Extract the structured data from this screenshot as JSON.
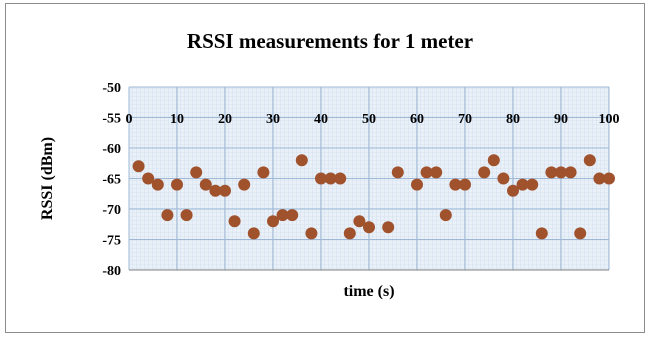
{
  "chart_data": {
    "type": "scatter",
    "title": "RSSI measurements for 1 meter",
    "xlabel": "time (s)",
    "ylabel": "RSSI (dBm)",
    "xlim": [
      0,
      100
    ],
    "ylim": [
      -80,
      -50
    ],
    "x_ticks": [
      0,
      10,
      20,
      30,
      40,
      50,
      60,
      70,
      80,
      90,
      100
    ],
    "y_ticks": [
      -50,
      -55,
      -60,
      -65,
      -70,
      -75,
      -80
    ],
    "x_tick_labels": [
      "0",
      "10",
      "20",
      "30",
      "40",
      "50",
      "60",
      "70",
      "80",
      "90",
      "100"
    ],
    "y_tick_labels": [
      "-50",
      "-55",
      "-60",
      "-65",
      "-70",
      "-75",
      "-80"
    ],
    "x_tick_position": "top",
    "grid": true,
    "legend": "none",
    "marker_color": "#a0522d",
    "grid_color": "#b8cde6",
    "plot_background": "#e9f0f8",
    "series": [
      {
        "x": [
          2,
          4,
          6,
          8,
          10,
          12,
          14,
          16,
          18,
          20,
          22,
          24,
          26,
          28,
          30,
          32,
          34,
          36,
          38,
          40,
          42,
          44,
          46,
          48,
          50,
          54,
          56,
          60,
          62,
          64,
          66,
          68,
          70,
          74,
          76,
          78,
          80,
          82,
          84,
          86,
          88,
          90,
          92,
          94,
          96,
          98,
          100
        ],
        "y": [
          -63,
          -65,
          -66,
          -71,
          -66,
          -71,
          -64,
          -66,
          -67,
          -67,
          -72,
          -66,
          -74,
          -64,
          -72,
          -71,
          -71,
          -62,
          -74,
          -65,
          -65,
          -65,
          -74,
          -72,
          -73,
          -73,
          -64,
          -66,
          -64,
          -64,
          -71,
          -66,
          -66,
          -64,
          -62,
          -65,
          -67,
          -66,
          -66,
          -74,
          -64,
          -64,
          -64,
          -74,
          -62,
          -65,
          -65
        ]
      }
    ]
  }
}
